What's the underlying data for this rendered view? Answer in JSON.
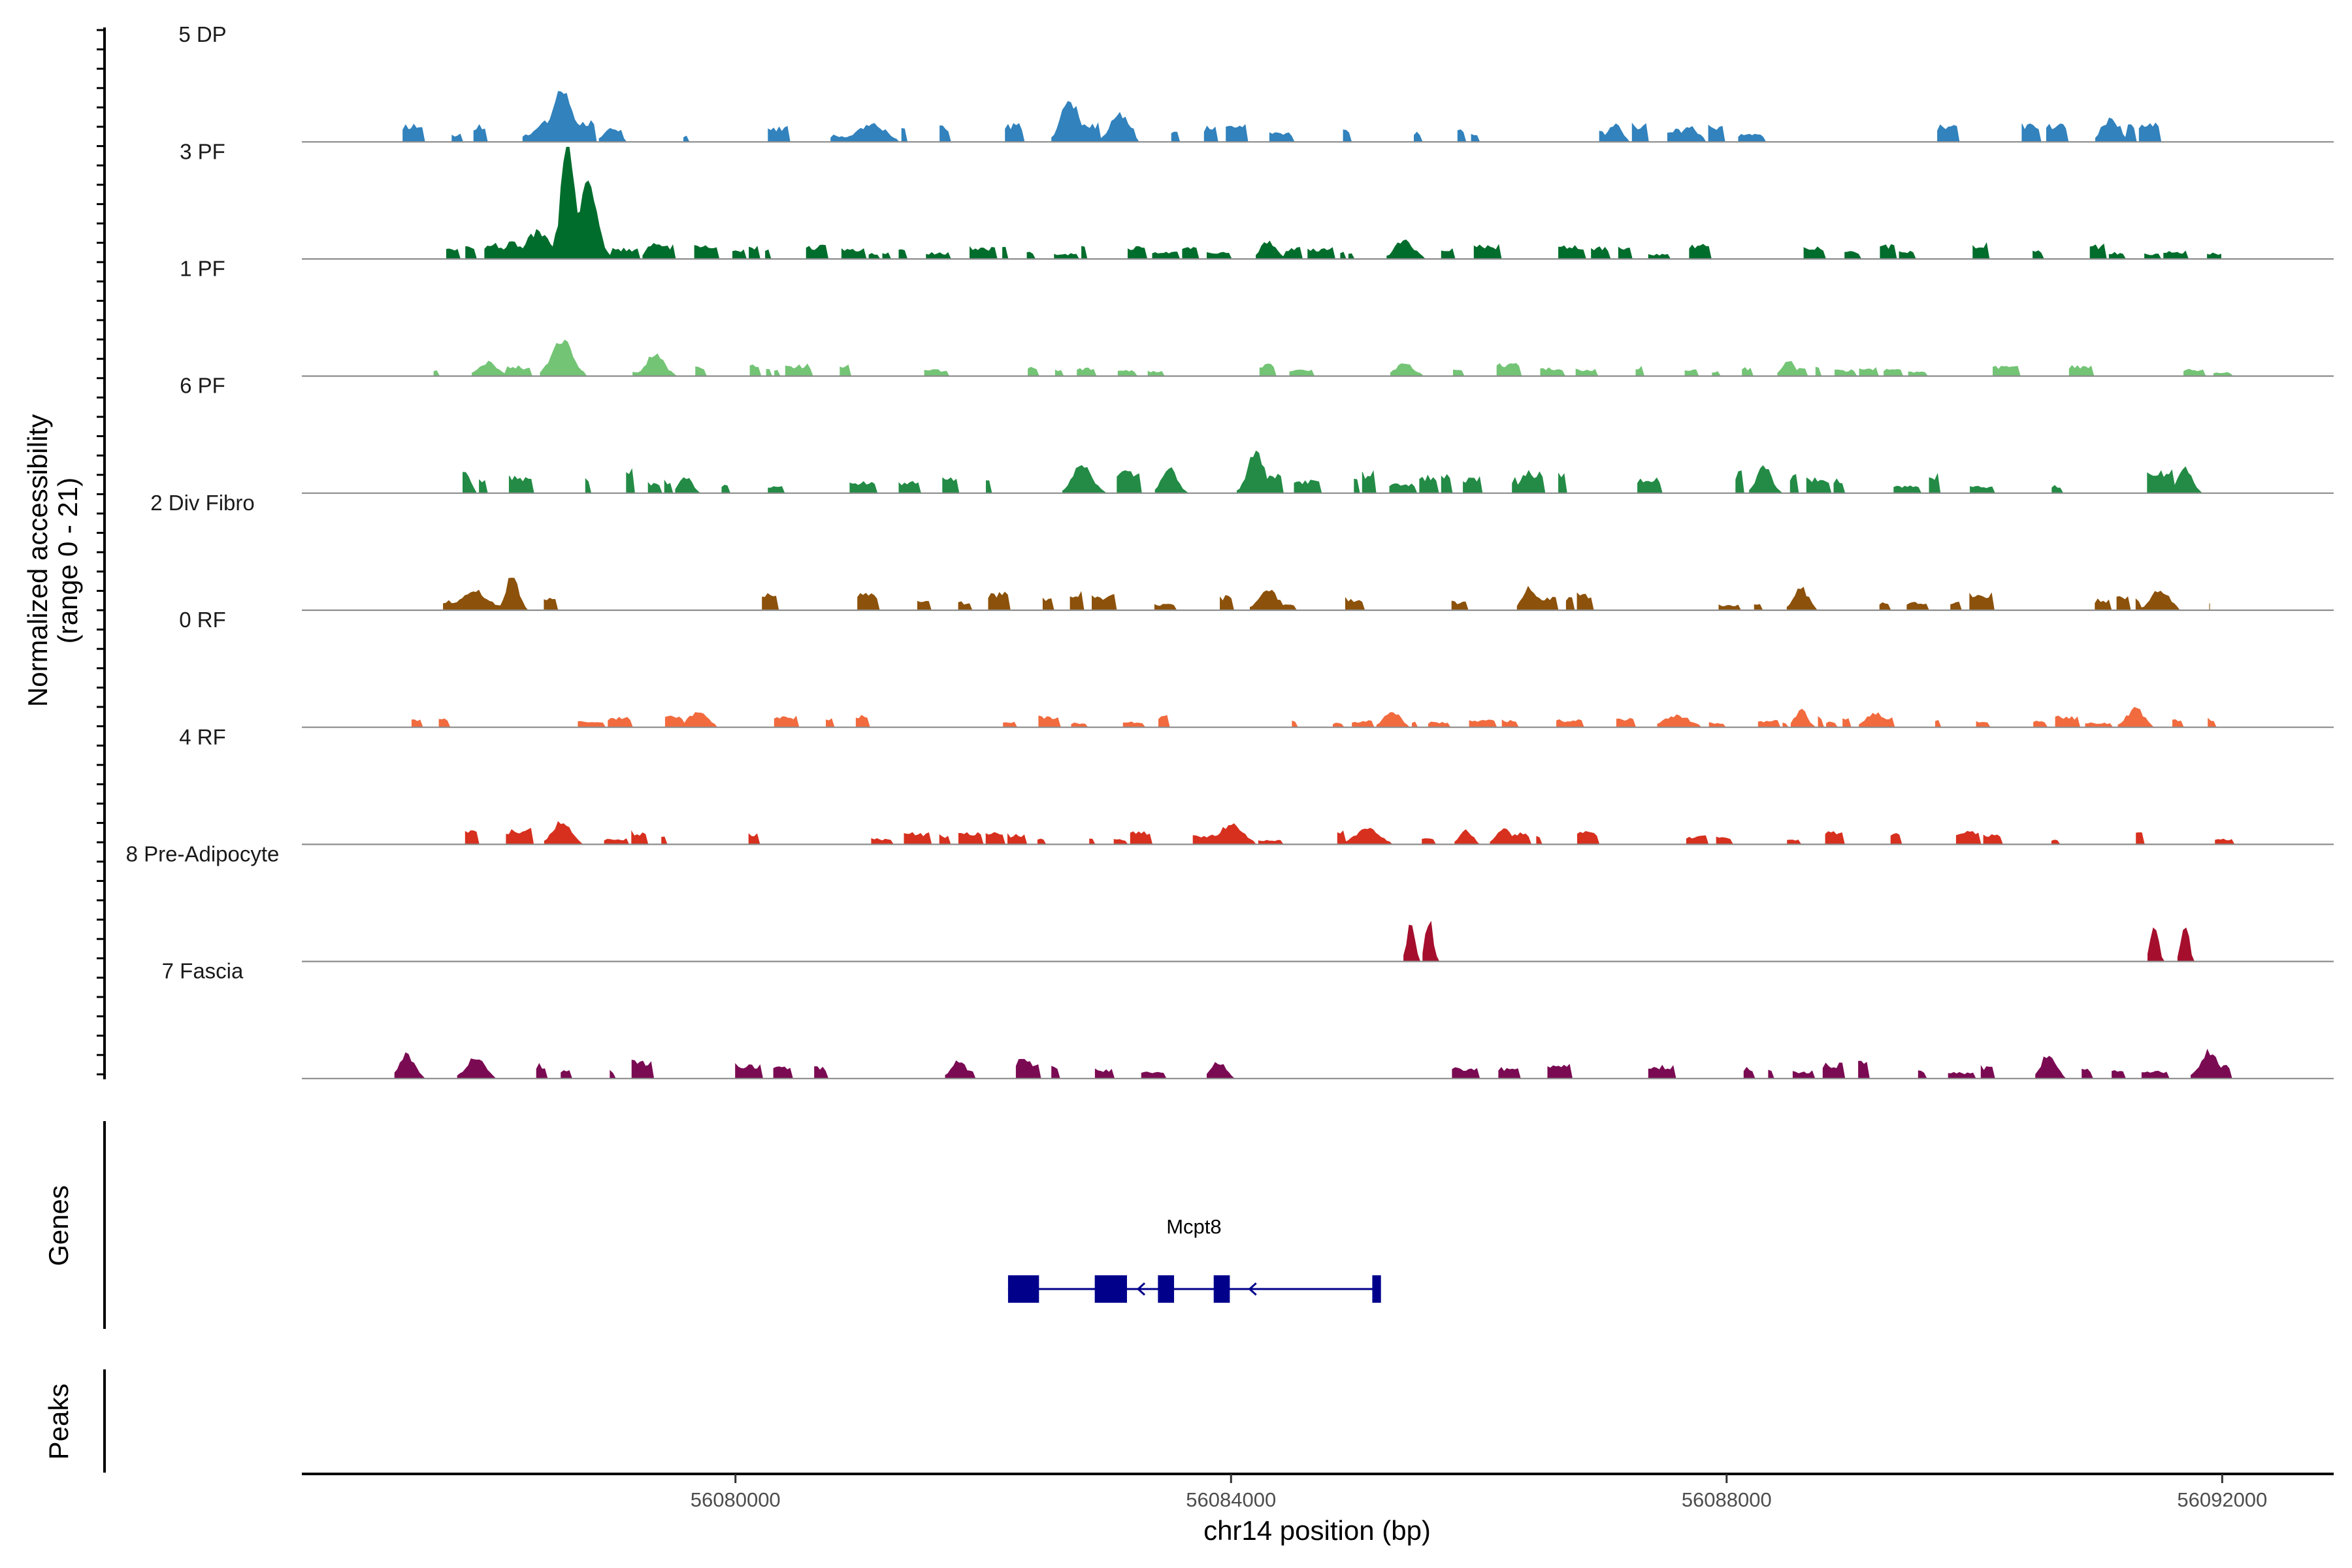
{
  "chart_data": {
    "type": "area",
    "title": "",
    "xlabel": "chr14 position (bp)",
    "ylabel": "Normalized accessibility",
    "ylabel_range": "(range 0 - 21)",
    "yrange": [
      0,
      21
    ],
    "xlim": [
      56076500,
      56092900
    ],
    "xticks": [
      56080000,
      56084000,
      56088000,
      56092000
    ],
    "xtick_labels": [
      "56080000",
      "56084000",
      "56088000",
      "56092000"
    ],
    "panel_labels": {
      "genes": "Genes",
      "peaks": "Peaks"
    },
    "gene": {
      "name": "Mcpt8",
      "start": 56082200,
      "end": 56085200,
      "strand": "-",
      "exons": [
        [
          56082200,
          56082450
        ],
        [
          56082900,
          56083160
        ],
        [
          56083410,
          56083540
        ],
        [
          56083860,
          56083990
        ],
        [
          56085140,
          56085210
        ]
      ],
      "color": "#00008B"
    },
    "tracks": [
      {
        "name": "5 DP",
        "color": "#3182BD",
        "seed": 11,
        "x0": 56077250,
        "x1": 56092000,
        "density": 0.55,
        "base": 2.6,
        "peaks": [
          [
            56078600,
            10.0,
            170
          ],
          [
            56078450,
            3.8,
            150
          ],
          [
            56079000,
            2.5,
            120
          ],
          [
            56082700,
            7.5,
            150
          ],
          [
            56083100,
            5.0,
            150
          ],
          [
            56081100,
            3.5,
            220
          ],
          [
            56091100,
            4.2,
            140
          ],
          [
            56087100,
            3.0,
            120
          ],
          [
            56087700,
            2.8,
            140
          ]
        ]
      },
      {
        "name": "3 PF",
        "color": "#006D2C",
        "seed": 23,
        "x0": 56077250,
        "x1": 56092000,
        "density": 0.5,
        "base": 2.0,
        "peaks": [
          [
            56078650,
            20.5,
            120
          ],
          [
            56078800,
            14.0,
            160
          ],
          [
            56078400,
            5.0,
            200
          ],
          [
            56078200,
            3.0,
            150
          ],
          [
            56079350,
            3.2,
            120
          ],
          [
            56084300,
            3.5,
            120
          ],
          [
            56085400,
            3.6,
            150
          ]
        ]
      },
      {
        "name": "1 PF",
        "color": "#74C476",
        "seed": 37,
        "x0": 56077500,
        "x1": 56092100,
        "density": 0.45,
        "base": 1.6,
        "peaks": [
          [
            56078600,
            7.0,
            170
          ],
          [
            56079350,
            4.0,
            150
          ],
          [
            56078000,
            2.5,
            150
          ],
          [
            56088500,
            2.8,
            100
          ],
          [
            56085400,
            2.2,
            150
          ]
        ]
      },
      {
        "name": "6 PF",
        "color": "#238B45",
        "seed": 41,
        "x0": 56077800,
        "x1": 56092100,
        "density": 0.5,
        "base": 3.0,
        "peaks": [
          [
            56084200,
            8.0,
            130
          ],
          [
            56077800,
            4.5,
            100
          ],
          [
            56082800,
            6.0,
            150
          ],
          [
            56083500,
            5.0,
            120
          ],
          [
            56088300,
            5.0,
            120
          ],
          [
            56091700,
            5.0,
            110
          ],
          [
            56079600,
            3.2,
            100
          ],
          [
            56086400,
            4.0,
            120
          ]
        ]
      },
      {
        "name": "2 Div Fibro",
        "color": "#8C510A",
        "seed": 53,
        "x0": 56077400,
        "x1": 56091900,
        "density": 0.5,
        "base": 2.4,
        "peaks": [
          [
            56078200,
            6.5,
            100
          ],
          [
            56084300,
            4.0,
            150
          ],
          [
            56086400,
            4.3,
            100
          ],
          [
            56088600,
            4.0,
            120
          ],
          [
            56091500,
            3.8,
            150
          ],
          [
            56077900,
            3.5,
            220
          ]
        ]
      },
      {
        "name": "0 RF",
        "color": "#F16B3F",
        "seed": 61,
        "x0": 56077300,
        "x1": 56092100,
        "density": 0.55,
        "base": 1.5,
        "peaks": [
          [
            56079700,
            3.0,
            150
          ],
          [
            56085300,
            2.8,
            140
          ],
          [
            56088600,
            3.3,
            100
          ],
          [
            56091300,
            3.5,
            140
          ],
          [
            56089200,
            2.8,
            150
          ],
          [
            56087600,
            2.3,
            200
          ]
        ]
      },
      {
        "name": "4 RF",
        "color": "#D7301F",
        "seed": 71,
        "x0": 56077600,
        "x1": 56092100,
        "density": 0.5,
        "base": 2.0,
        "peaks": [
          [
            56078600,
            4.5,
            150
          ],
          [
            56084000,
            3.5,
            200
          ],
          [
            56085100,
            3.0,
            200
          ],
          [
            56086200,
            3.0,
            120
          ],
          [
            56085900,
            2.7,
            100
          ]
        ]
      },
      {
        "name": "8 Pre-Adipocyte",
        "color": "#A50F2D",
        "seed": 83,
        "x0": 56085350,
        "x1": 56091800,
        "density": 0,
        "base": 0,
        "peaks": [
          [
            56085450,
            7.8,
            60
          ],
          [
            56085600,
            7.8,
            60
          ],
          [
            56091450,
            7.8,
            60
          ],
          [
            56091700,
            7.8,
            60
          ]
        ]
      },
      {
        "name": "7 Fascia",
        "color": "#7A0B53",
        "seed": 97,
        "x0": 56077250,
        "x1": 56092100,
        "density": 0.42,
        "base": 2.4,
        "peaks": [
          [
            56077350,
            4.5,
            120
          ],
          [
            56077900,
            3.8,
            150
          ],
          [
            56090600,
            4.5,
            120
          ],
          [
            56091900,
            5.0,
            150
          ],
          [
            56081800,
            3.5,
            120
          ],
          [
            56083900,
            3.0,
            120
          ]
        ]
      }
    ]
  }
}
